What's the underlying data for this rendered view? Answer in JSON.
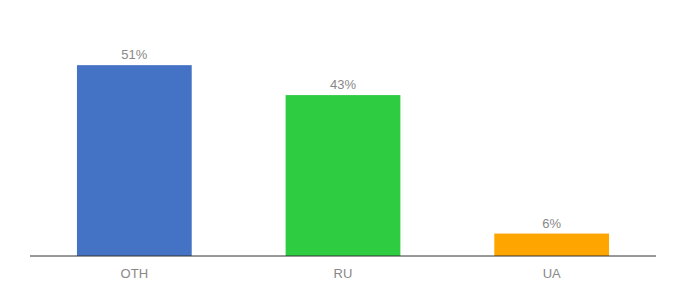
{
  "chart_data": {
    "type": "bar",
    "categories": [
      "OTH",
      "RU",
      "UA"
    ],
    "values": [
      51,
      43,
      6
    ],
    "value_labels": [
      "51%",
      "43%",
      "6%"
    ],
    "colors": [
      "#4472C4",
      "#2ECC40",
      "#FFA500"
    ],
    "ylim": [
      0,
      62
    ],
    "data_labels": true,
    "tick_labels": "x",
    "grid": false
  }
}
